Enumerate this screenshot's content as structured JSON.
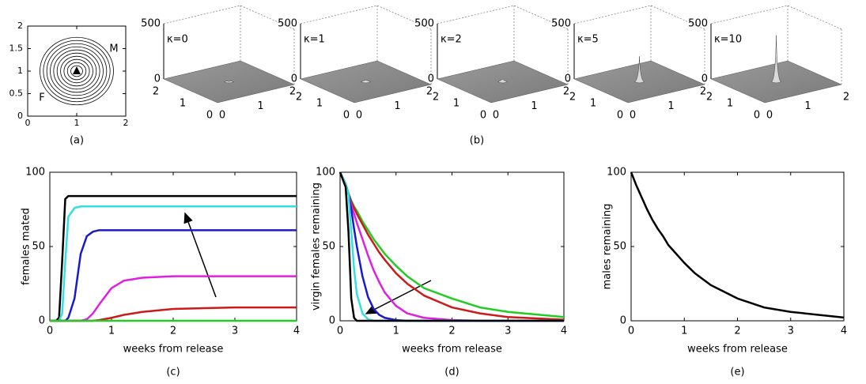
{
  "chart_data": [
    {
      "type": "contour",
      "xlim": [
        0,
        2
      ],
      "ylim": [
        0,
        2
      ],
      "xticks": [
        0,
        1,
        2
      ],
      "yticks": [
        0,
        0.5,
        1,
        1.5,
        2
      ],
      "center": [
        1,
        1
      ],
      "radii": [
        0.12,
        0.19,
        0.26,
        0.33,
        0.4,
        0.47,
        0.54,
        0.61,
        0.68,
        0.75
      ],
      "labels": [
        "M",
        "F"
      ],
      "caption": "(a)"
    },
    {
      "type": "surface",
      "zlim": [
        0,
        500
      ],
      "zticks": [
        0,
        500
      ],
      "xticks": [
        0,
        1,
        2
      ],
      "yticks": [
        0,
        1,
        2
      ],
      "caption": "(b)",
      "panels": [
        {
          "label": "κ=0",
          "peak": 0
        },
        {
          "label": "κ=1",
          "peak": 15
        },
        {
          "label": "κ=2",
          "peak": 25
        },
        {
          "label": "κ=5",
          "peak": 230
        },
        {
          "label": "κ=10",
          "peak": 420
        }
      ]
    },
    {
      "type": "line",
      "xlabel": "weeks from release",
      "ylabel": "females mated",
      "caption": "(c)",
      "xlim": [
        0,
        4
      ],
      "ylim": [
        0,
        100
      ],
      "xticks": [
        0,
        1,
        2,
        3,
        4
      ],
      "yticks": [
        0,
        50,
        100
      ],
      "x": [
        0,
        0.1,
        0.15,
        0.2,
        0.25,
        0.3,
        0.4,
        0.5,
        0.6,
        0.7,
        0.8,
        1,
        1.2,
        1.5,
        2,
        2.5,
        3,
        4
      ],
      "series": [
        {
          "color": "#000000",
          "values": [
            0,
            0,
            2,
            40,
            82,
            84,
            84,
            84,
            84,
            84,
            84,
            84,
            84,
            84,
            84,
            84,
            84,
            84
          ]
        },
        {
          "color": "#33e0e0",
          "values": [
            0,
            0,
            0,
            5,
            40,
            70,
            76,
            77,
            77,
            77,
            77,
            77,
            77,
            77,
            77,
            77,
            77,
            77
          ]
        },
        {
          "color": "#1a1acc",
          "values": [
            0,
            0,
            0,
            0,
            0,
            2,
            15,
            45,
            57,
            60,
            61,
            61,
            61,
            61,
            61,
            61,
            61,
            61
          ]
        },
        {
          "color": "#e020e0",
          "values": [
            0,
            0,
            0,
            0,
            0,
            0,
            0,
            0,
            1,
            5,
            11,
            22,
            27,
            29,
            30,
            30,
            30,
            30
          ]
        },
        {
          "color": "#cc1a1a",
          "values": [
            0,
            0,
            0,
            0,
            0,
            0,
            0,
            0,
            0,
            0,
            0.5,
            2,
            4,
            6,
            8,
            8.5,
            9,
            9
          ]
        },
        {
          "color": "#22cc22",
          "values": [
            0,
            0,
            0,
            0,
            0,
            0,
            0,
            0,
            0,
            0,
            0,
            0,
            0,
            0,
            0,
            0,
            0,
            0
          ]
        }
      ]
    },
    {
      "type": "line",
      "xlabel": "weeks from release",
      "ylabel": "virgin females remaining",
      "caption": "(d)",
      "xlim": [
        0,
        4
      ],
      "ylim": [
        0,
        100
      ],
      "xticks": [
        0,
        1,
        2,
        3,
        4
      ],
      "yticks": [
        0,
        50,
        100
      ],
      "x": [
        0,
        0.1,
        0.15,
        0.2,
        0.25,
        0.3,
        0.4,
        0.5,
        0.6,
        0.7,
        0.8,
        1,
        1.2,
        1.5,
        2,
        2.5,
        3,
        4
      ],
      "series": [
        {
          "color": "#22cc22",
          "values": [
            100,
            92,
            86,
            81,
            77,
            74,
            67,
            61,
            55,
            50,
            45,
            37,
            30,
            22,
            15,
            9,
            6,
            2.5
          ]
        },
        {
          "color": "#cc1a1a",
          "values": [
            100,
            92,
            85,
            80,
            76,
            72,
            65,
            58,
            52,
            46,
            41,
            32,
            25,
            17,
            9,
            5,
            2.5,
            0.7
          ]
        },
        {
          "color": "#e020e0",
          "values": [
            100,
            92,
            85,
            78,
            72,
            66,
            55,
            44,
            34,
            26,
            19,
            10,
            5,
            2,
            0.5,
            0,
            0,
            0
          ]
        },
        {
          "color": "#1a1acc",
          "values": [
            100,
            92,
            85,
            75,
            62,
            50,
            30,
            16,
            8,
            4,
            2,
            0.5,
            0,
            0,
            0,
            0,
            0,
            0
          ]
        },
        {
          "color": "#33e0e0",
          "values": [
            100,
            92,
            85,
            60,
            35,
            18,
            5,
            1,
            0,
            0,
            0,
            0,
            0,
            0,
            0,
            0,
            0,
            0
          ]
        },
        {
          "color": "#000000",
          "values": [
            100,
            90,
            60,
            15,
            2,
            0,
            0,
            0,
            0,
            0,
            0,
            0,
            0,
            0,
            0,
            0,
            0,
            0
          ]
        }
      ]
    },
    {
      "type": "line",
      "xlabel": "weeks from release",
      "ylabel": "males remaining",
      "caption": "(e)",
      "xlim": [
        0,
        4
      ],
      "ylim": [
        0,
        100
      ],
      "xticks": [
        0,
        1,
        2,
        3,
        4
      ],
      "yticks": [
        0,
        50,
        100
      ],
      "x": [
        0,
        0.1,
        0.15,
        0.2,
        0.25,
        0.3,
        0.4,
        0.5,
        0.6,
        0.7,
        0.8,
        1,
        1.2,
        1.5,
        2,
        2.5,
        3,
        4
      ],
      "series": [
        {
          "color": "#000000",
          "values": [
            100,
            91,
            87,
            83,
            79,
            75,
            68,
            62,
            57,
            51,
            47,
            39,
            32,
            24,
            15,
            9,
            6,
            2.2
          ]
        }
      ]
    }
  ]
}
